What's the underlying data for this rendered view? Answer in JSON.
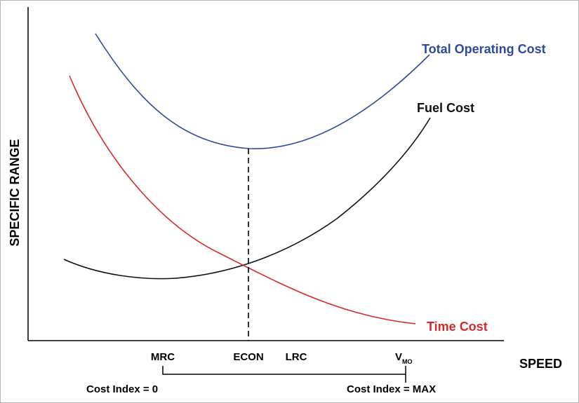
{
  "chart_data": {
    "type": "line",
    "xlabel": "SPEED",
    "ylabel": "SPECIFIC RANGE",
    "grid": false,
    "legend": "none",
    "series": [
      {
        "name": "Total Operating Cost",
        "color": "#2e4a9a"
      },
      {
        "name": "Fuel Cost",
        "color": "#111111"
      },
      {
        "name": "Time Cost",
        "color": "#d42a2a"
      }
    ],
    "x_ticks": [
      {
        "label": "MRC",
        "sub": ""
      },
      {
        "label": "ECON",
        "sub": ""
      },
      {
        "label": "LRC",
        "sub": ""
      },
      {
        "label": "V",
        "sub": "MO"
      }
    ],
    "cost_index": {
      "min_label": "Cost Index = 0",
      "max_label": "Cost Index = MAX"
    }
  }
}
